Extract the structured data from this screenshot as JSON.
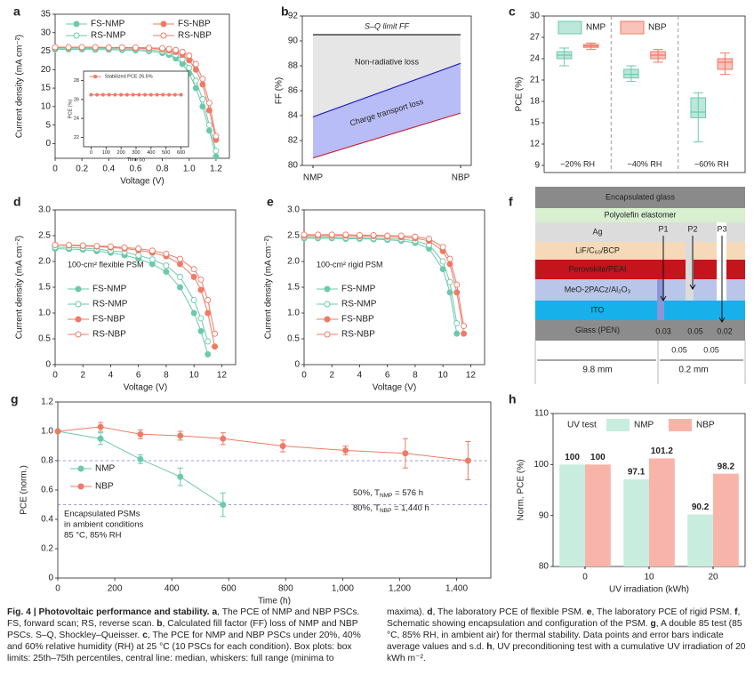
{
  "chart_data": [
    {
      "type": "line",
      "label": "a",
      "xlabel": "Voltage (V)",
      "ylabel": "Current density (mA cm⁻²)",
      "xlim": [
        0,
        1.3
      ],
      "ylim": [
        -4,
        35
      ],
      "xticks": [
        0,
        0.2,
        0.4,
        0.6,
        0.8,
        {
          "value": 1,
          "label": "1.0"
        },
        1.2
      ],
      "yticks": [
        0,
        5,
        10,
        15,
        20,
        25,
        30,
        35
      ],
      "legend": "top",
      "x": [
        0,
        0.1,
        0.2,
        0.3,
        0.4,
        0.5,
        0.6,
        0.7,
        0.8,
        0.85,
        0.9,
        0.95,
        1.0,
        1.05,
        1.1,
        1.15,
        1.2
      ],
      "series": [
        {
          "name": "FS-NMP",
          "color": "#6cc9ad",
          "filled": true,
          "values": [
            25.5,
            25.5,
            25.5,
            25.4,
            25.4,
            25.3,
            25.2,
            25.0,
            24.5,
            24.0,
            23.0,
            21.5,
            19.0,
            15.0,
            10.0,
            3.5,
            -3.5
          ]
        },
        {
          "name": "RS-NMP",
          "color": "#6cc9ad",
          "filled": false,
          "values": [
            25.8,
            25.8,
            25.8,
            25.7,
            25.7,
            25.6,
            25.5,
            25.3,
            25.0,
            24.6,
            24.0,
            22.8,
            20.5,
            17.0,
            12.0,
            5.0,
            -2.0
          ]
        },
        {
          "name": "FS-NBP",
          "color": "#ee7b66",
          "filled": true,
          "values": [
            26.0,
            26.0,
            26.0,
            26.0,
            25.9,
            25.9,
            25.8,
            25.7,
            25.5,
            25.2,
            24.8,
            24.0,
            22.5,
            20.0,
            16.0,
            9.0,
            1.0
          ]
        },
        {
          "name": "RS-NBP",
          "color": "#ee7b66",
          "filled": false,
          "values": [
            26.1,
            26.1,
            26.1,
            26.1,
            26.0,
            26.0,
            26.0,
            25.9,
            25.8,
            25.6,
            25.3,
            24.8,
            23.8,
            21.5,
            17.5,
            11.0,
            2.0
          ]
        }
      ]
    },
    {
      "type": "line",
      "xlabel": "Time (s)",
      "ylabel": "PCE (%)",
      "xlim": [
        -50,
        650
      ],
      "ylim": [
        21,
        29
      ],
      "xticks": [
        0,
        100,
        200,
        300,
        400,
        500,
        600
      ],
      "yticks": [
        22,
        24,
        26,
        28
      ],
      "legend": "top",
      "x": [
        0,
        40,
        80,
        120,
        160,
        200,
        240,
        280,
        320,
        360,
        400,
        440,
        480,
        520,
        560,
        600
      ],
      "series": [
        {
          "name": "Stabilized PCE 26.5%",
          "color": "#ee7b66",
          "filled": true,
          "values": [
            26.5,
            26.5,
            26.5,
            26.5,
            26.5,
            26.5,
            26.5,
            26.5,
            26.5,
            26.5,
            26.5,
            26.5,
            26.5,
            26.5,
            26.5,
            26.5
          ]
        }
      ]
    },
    {
      "type": "area",
      "label": "b",
      "ylabel": "FF (%)",
      "categories": [
        "NMP",
        "NBP"
      ],
      "ylim": [
        80,
        92
      ],
      "yticks": [
        80,
        82,
        84,
        86,
        88,
        90,
        92
      ],
      "series": [
        {
          "name": "S–Q limit FF",
          "color": "#222222",
          "values": [
            90.5,
            90.5
          ]
        },
        {
          "color": "#1f1fc8",
          "values": [
            83.9,
            88.2
          ]
        },
        {
          "color": "#c8283a",
          "values": [
            80.6,
            84.2
          ]
        }
      ],
      "regions": [
        {
          "label": "Non-radiative loss",
          "color": "#e6e6e6"
        },
        {
          "label": "Charge transport loss",
          "color": "#b9bdf7"
        }
      ]
    },
    {
      "type": "box",
      "label": "c",
      "ylabel": "PCE (%)",
      "categories": [
        "~20% RH",
        "~40% RH",
        "~60% RH"
      ],
      "ylim": [
        8,
        30
      ],
      "yticks": [
        9,
        12,
        15,
        18,
        21,
        24,
        27,
        30
      ],
      "series": [
        {
          "name": "NMP",
          "color": "#6cc9ad",
          "min": [
            23.0,
            20.8,
            12.3
          ],
          "q1": [
            24.0,
            21.3,
            15.7
          ],
          "median": [
            24.5,
            21.8,
            16.5
          ],
          "q3": [
            25.0,
            22.5,
            18.5
          ],
          "max": [
            25.5,
            23.0,
            19.2
          ]
        },
        {
          "name": "NBP",
          "color": "#ee7b66",
          "min": [
            25.3,
            23.5,
            21.8
          ],
          "q1": [
            25.6,
            24.0,
            22.5
          ],
          "median": [
            25.8,
            24.5,
            23.5
          ],
          "q3": [
            26.0,
            25.0,
            24.0
          ],
          "max": [
            26.2,
            25.3,
            24.8
          ]
        }
      ]
    },
    {
      "type": "line",
      "label": "d",
      "xlabel": "Voltage (V)",
      "ylabel": "Current density (mA cm⁻²)",
      "note": "100-cm² flexible PSM",
      "xlim": [
        0,
        13
      ],
      "ylim": [
        0,
        3
      ],
      "xticks": [
        0,
        2,
        4,
        6,
        8,
        10,
        12
      ],
      "yticks": [
        0,
        0.5,
        {
          "value": 1,
          "label": "1.0"
        },
        1.5,
        {
          "value": 2,
          "label": "2.0"
        },
        2.5,
        {
          "value": 3,
          "label": "3.0"
        }
      ],
      "legend": "lower left",
      "x": [
        0,
        1,
        2,
        3,
        4,
        5,
        6,
        7,
        8,
        9,
        10,
        10.5,
        11,
        11.5,
        12
      ],
      "series": [
        {
          "name": "FS-NMP",
          "color": "#6cc9ad",
          "filled": true,
          "values": [
            2.25,
            2.24,
            2.23,
            2.2,
            2.17,
            2.12,
            2.05,
            1.95,
            1.8,
            1.5,
            1.0,
            0.65,
            0.2,
            null,
            null
          ]
        },
        {
          "name": "RS-NMP",
          "color": "#6cc9ad",
          "filled": false,
          "values": [
            2.28,
            2.27,
            2.26,
            2.24,
            2.21,
            2.18,
            2.12,
            2.04,
            1.92,
            1.7,
            1.25,
            0.9,
            0.45,
            null,
            null
          ]
        },
        {
          "name": "FS-NBP",
          "color": "#ee7b66",
          "filled": true,
          "values": [
            2.32,
            2.31,
            2.3,
            2.29,
            2.27,
            2.25,
            2.22,
            2.17,
            2.1,
            1.95,
            1.7,
            1.45,
            1.0,
            0.35,
            null
          ]
        },
        {
          "name": "RS-NBP",
          "color": "#ee7b66",
          "filled": false,
          "values": [
            2.32,
            2.32,
            2.31,
            2.3,
            2.29,
            2.27,
            2.25,
            2.21,
            2.15,
            2.05,
            1.85,
            1.65,
            1.25,
            0.6,
            null
          ]
        }
      ]
    },
    {
      "type": "line",
      "label": "e",
      "xlabel": "Voltage (V)",
      "ylabel": "Current density (mA cm⁻²)",
      "note": "100-cm² rigid PSM",
      "xlim": [
        0,
        13
      ],
      "ylim": [
        0,
        3
      ],
      "xticks": [
        0,
        2,
        4,
        6,
        8,
        10,
        12
      ],
      "yticks": [
        0,
        0.5,
        {
          "value": 1,
          "label": "1.0"
        },
        1.5,
        {
          "value": 2,
          "label": "2.0"
        },
        2.5,
        {
          "value": 3,
          "label": "3.0"
        }
      ],
      "legend": "lower left",
      "x": [
        0,
        1,
        2,
        3,
        4,
        5,
        6,
        7,
        8,
        9,
        10,
        10.5,
        11,
        11.5,
        12
      ],
      "series": [
        {
          "name": "FS-NMP",
          "color": "#6cc9ad",
          "filled": true,
          "values": [
            2.45,
            2.45,
            2.45,
            2.44,
            2.44,
            2.43,
            2.42,
            2.4,
            2.36,
            2.25,
            1.85,
            1.4,
            0.6,
            null,
            null
          ]
        },
        {
          "name": "RS-NMP",
          "color": "#6cc9ad",
          "filled": false,
          "values": [
            2.47,
            2.47,
            2.47,
            2.46,
            2.46,
            2.45,
            2.44,
            2.43,
            2.4,
            2.32,
            2.0,
            1.6,
            0.8,
            null,
            null
          ]
        },
        {
          "name": "FS-NBP",
          "color": "#ee7b66",
          "filled": true,
          "values": [
            2.5,
            2.5,
            2.5,
            2.5,
            2.49,
            2.49,
            2.48,
            2.47,
            2.45,
            2.4,
            2.2,
            1.95,
            1.4,
            0.6,
            null
          ]
        },
        {
          "name": "RS-NBP",
          "color": "#ee7b66",
          "filled": false,
          "values": [
            2.52,
            2.52,
            2.52,
            2.52,
            2.51,
            2.51,
            2.5,
            2.5,
            2.48,
            2.44,
            2.28,
            2.05,
            1.55,
            0.75,
            null
          ]
        }
      ]
    },
    {
      "type": "line",
      "label": "g",
      "xlabel": "Time (h)",
      "ylabel": "PCE (norm.)",
      "xlim": [
        0,
        1520
      ],
      "ylim": [
        0,
        1.2
      ],
      "xticks": [
        0,
        200,
        400,
        600,
        800,
        {
          "value": 1000,
          "label": "1,000"
        },
        {
          "value": 1200,
          "label": "1,200"
        },
        {
          "value": 1400,
          "label": "1,400"
        }
      ],
      "yticks": [
        0,
        0.2,
        0.4,
        0.6,
        0.8,
        {
          "value": 1,
          "label": "1.0"
        },
        1.2
      ],
      "legend": "center left",
      "hlines": [
        0.8,
        0.5
      ],
      "hline_color": "#7b7bd9",
      "notes": [
        [
          "50%, T",
          "NMP",
          " = 576 h"
        ],
        [
          "80%, T",
          "NBP",
          " = 1,440 h"
        ]
      ],
      "text_box": [
        "Encapsulated PSMs",
        "in ambient conditions",
        "85 °C, 85% RH"
      ],
      "series": [
        {
          "name": "NMP",
          "color": "#6cc9ad",
          "x": [
            0,
            150,
            290,
            430,
            580
          ],
          "values": [
            1.0,
            0.95,
            0.81,
            0.69,
            0.5
          ],
          "errors": [
            0,
            0.04,
            0.03,
            0.06,
            0.08
          ]
        },
        {
          "name": "NBP",
          "color": "#ee7b66",
          "x": [
            0,
            150,
            290,
            430,
            580,
            790,
            1010,
            1220,
            1440
          ],
          "values": [
            1.0,
            1.03,
            0.98,
            0.97,
            0.95,
            0.9,
            0.87,
            0.85,
            0.8
          ],
          "errors": [
            0,
            0.03,
            0.03,
            0.03,
            0.04,
            0.04,
            0.03,
            0.1,
            0.13
          ]
        }
      ]
    },
    {
      "type": "bar",
      "label": "h",
      "xlabel": "UV irradiation (kWh)",
      "ylabel": "Norm. PCE (%)",
      "categories": [
        "0",
        "10",
        "20"
      ],
      "ylim": [
        80,
        110
      ],
      "yticks": [
        80,
        90,
        100,
        110
      ],
      "legend_title": "UV test",
      "series": [
        {
          "name": "NMP",
          "color": "#c8eddf",
          "values": [
            100,
            97.1,
            90.2
          ]
        },
        {
          "name": "NBP",
          "color": "#f8b4a8",
          "values": [
            100,
            101.2,
            98.2
          ]
        }
      ]
    }
  ],
  "diagram": {
    "label": "f",
    "layers": [
      "Encapsulated glass",
      "Polyolefin elastomer",
      "Ag",
      "LiF/C₆₀/BCP",
      "Perovskite/PEAI",
      "MeO-2PACz/Al₂O₃",
      "ITO",
      "Glass (PEN)"
    ],
    "scribes": [
      "P1",
      "P2",
      "P3"
    ],
    "widths": [
      "0.03",
      "0.05",
      "0.02",
      "0.05",
      "0.05"
    ],
    "spans": [
      "9.8 mm",
      "0.2 mm"
    ]
  },
  "caption": {
    "title": "Fig. 4 | Photovoltaic performance and stability.",
    "parts": [
      {
        "label": "a",
        "text": ", The PCE of NMP and NBP PSCs. FS, forward scan; RS, reverse scan. "
      },
      {
        "label": "b",
        "text": ", Calculated fill factor (FF) loss of NMP and NBP PSCs. S–Q, Shockley–Queisser. "
      },
      {
        "label": "c",
        "text": ", The PCE for NMP and NBP PSCs under 20%, 40% and 60% relative humidity (RH) at 25 °C (10 PSCs for each condition). Box plots: box limits: 25th–75th percentiles, central line: median, whiskers: full range (minima to maxima). "
      },
      {
        "label": "d",
        "text": ", The laboratory PCE of flexible PSM. "
      },
      {
        "label": "e",
        "text": ", The laboratory PCE of rigid PSM. "
      },
      {
        "label": "f",
        "text": ", Schematic showing encapsulation and configuration of the PSM. "
      },
      {
        "label": "g",
        "text": ", A double 85 test (85 °C, 85% RH, in ambient air) for thermal stability. Data points and error bars indicate average values and s.d. "
      },
      {
        "label": "h",
        "text": ", UV preconditioning test with a cumulative UV irradiation of 20 kWh m⁻²."
      }
    ]
  }
}
